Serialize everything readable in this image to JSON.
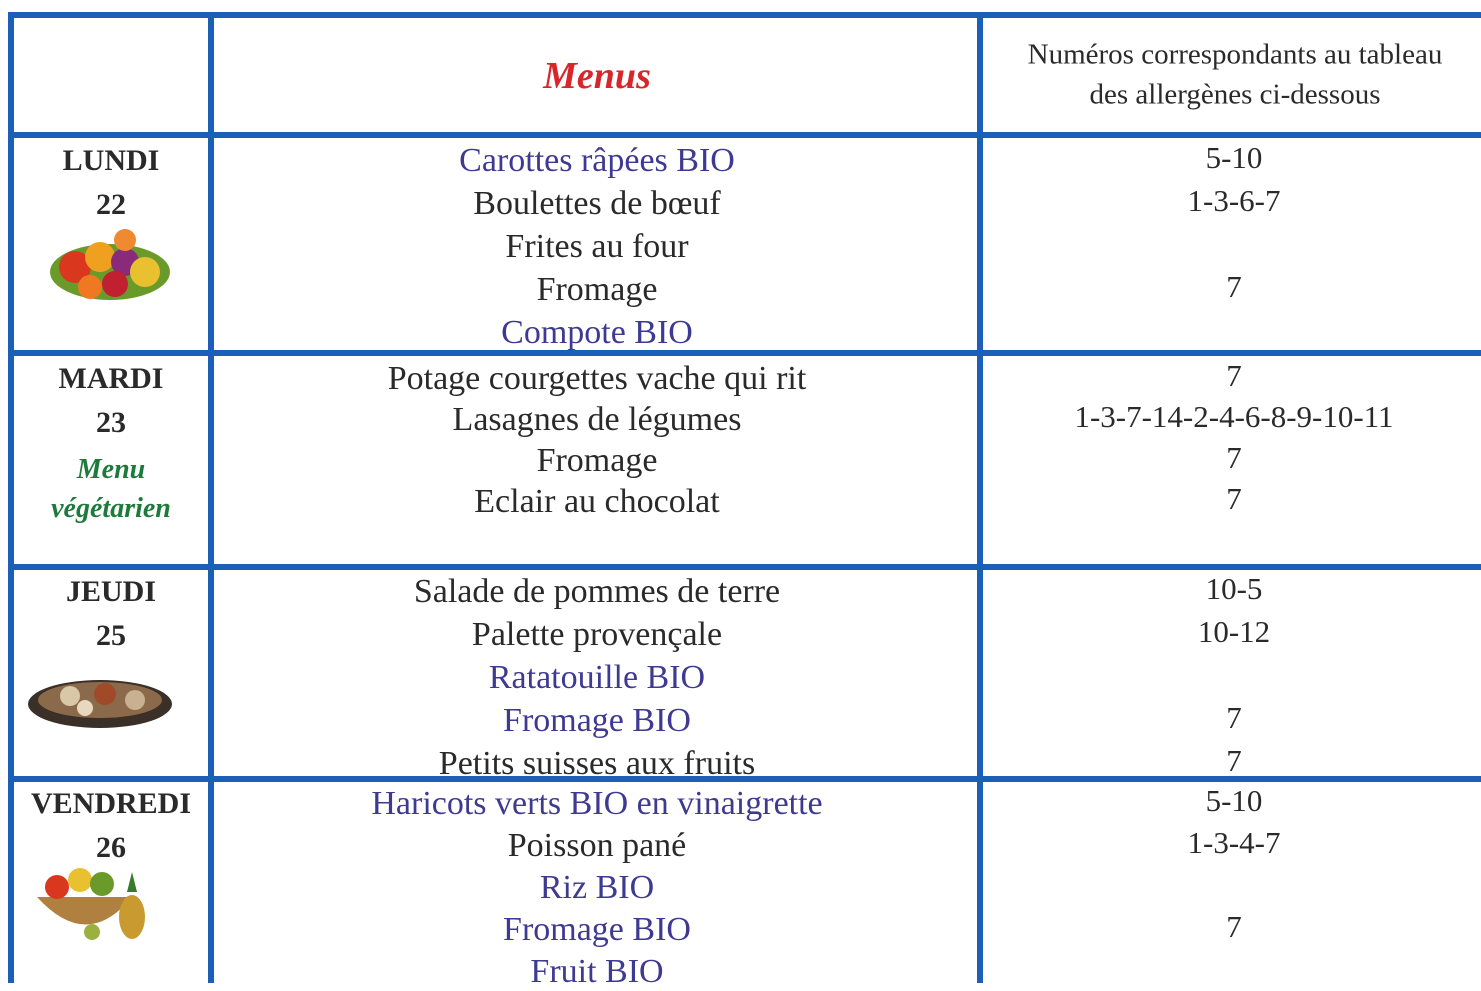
{
  "table": {
    "header": {
      "menus": "Menus",
      "allergens": [
        "Numéros correspondants au tableau",
        "des allergènes ci-dessous"
      ]
    },
    "rows": [
      {
        "day": "LUNDI",
        "date": "22",
        "items": [
          {
            "text": "Carottes râpées BIO",
            "highlight": true,
            "allergens": "5-10"
          },
          {
            "text": "Boulettes de bœuf",
            "highlight": false,
            "allergens": "1-3-6-7"
          },
          {
            "text": "Frites au four",
            "highlight": false,
            "allergens": null
          },
          {
            "text": "Fromage",
            "highlight": false,
            "allergens": "7"
          },
          {
            "text": "Compote BIO",
            "highlight": true,
            "allergens": null
          }
        ]
      },
      {
        "day": "MARDI",
        "date": "23",
        "note": [
          "Menu",
          "végétarien"
        ],
        "items": [
          {
            "text": "Potage courgettes vache qui rit",
            "highlight": false,
            "allergens": "7"
          },
          {
            "text": "Lasagnes de légumes",
            "highlight": false,
            "allergens": "1-3-7-14-2-4-6-8-9-10-11"
          },
          {
            "text": "Fromage",
            "highlight": false,
            "allergens": "7"
          },
          {
            "text": "Eclair au chocolat",
            "highlight": false,
            "allergens": "7"
          }
        ]
      },
      {
        "day": "JEUDI",
        "date": "25",
        "items": [
          {
            "text": "Salade de pommes de terre",
            "highlight": false,
            "allergens": "10-5"
          },
          {
            "text": "Palette provençale",
            "highlight": false,
            "allergens": "10-12"
          },
          {
            "text": "Ratatouille BIO",
            "highlight": true,
            "allergens": null
          },
          {
            "text": "Fromage BIO",
            "highlight": true,
            "allergens": "7"
          },
          {
            "text": "Petits suisses aux fruits",
            "highlight": false,
            "allergens": "7"
          }
        ]
      },
      {
        "day": "VENDREDI",
        "date": "26",
        "items": [
          {
            "text": "Haricots verts BIO en vinaigrette",
            "highlight": true,
            "allergens": "5-10"
          },
          {
            "text": "Poisson pané",
            "highlight": false,
            "allergens": "1-3-4-7"
          },
          {
            "text": "Riz BIO",
            "highlight": true,
            "allergens": null
          },
          {
            "text": "Fromage BIO",
            "highlight": true,
            "allergens": "7"
          },
          {
            "text": "Fruit BIO",
            "highlight": true,
            "allergens": null
          }
        ]
      }
    ]
  }
}
